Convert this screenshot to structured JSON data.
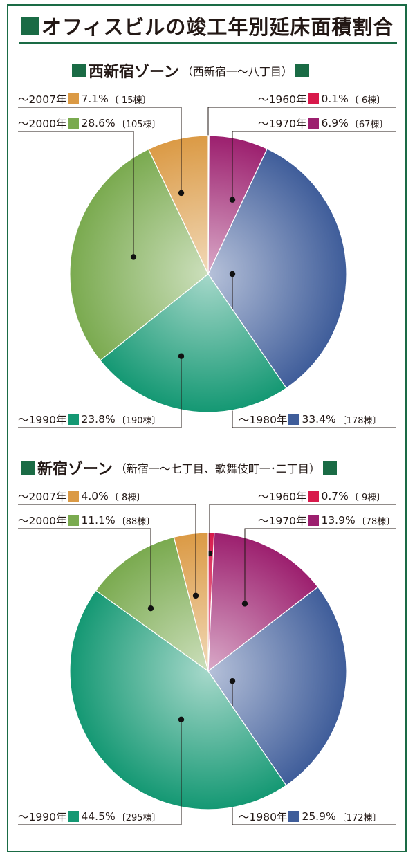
{
  "title": "オフィスビルの竣工年別延床面積割合",
  "accent_color": "#1a6b45",
  "chart_data": [
    {
      "type": "pie",
      "title": "西新宿ゾーン",
      "subtitle": "（西新宿一～八丁目）",
      "slices": [
        {
          "label": "～1960年",
          "value": 0.1,
          "value_label": "0.1%",
          "count": "〔 6棟〕",
          "color": "#d8194b"
        },
        {
          "label": "～1970年",
          "value": 6.9,
          "value_label": "6.9%",
          "count": "〔67棟〕",
          "color": "#9c1f6e"
        },
        {
          "label": "～1980年",
          "value": 33.4,
          "value_label": "33.4%",
          "count": "〔178棟〕",
          "color": "#3f5d9a"
        },
        {
          "label": "～1990年",
          "value": 23.8,
          "value_label": "23.8%",
          "count": "〔190棟〕",
          "color": "#149873"
        },
        {
          "label": "～2000年",
          "value": 28.6,
          "value_label": "28.6%",
          "count": "〔105棟〕",
          "color": "#7aaa4f"
        },
        {
          "label": "～2007年",
          "value": 7.1,
          "value_label": "7.1%",
          "count": "〔 15棟〕",
          "color": "#db9a45"
        }
      ]
    },
    {
      "type": "pie",
      "title": "新宿ゾーン",
      "subtitle": "（新宿一～七丁目、歌舞伎町一･二丁目）",
      "slices": [
        {
          "label": "～1960年",
          "value": 0.7,
          "value_label": "0.7%",
          "count": "〔 9棟〕",
          "color": "#d8194b"
        },
        {
          "label": "～1970年",
          "value": 13.9,
          "value_label": "13.9%",
          "count": "〔78棟〕",
          "color": "#9c1f6e"
        },
        {
          "label": "～1980年",
          "value": 25.9,
          "value_label": "25.9%",
          "count": "〔172棟〕",
          "color": "#3f5d9a"
        },
        {
          "label": "～1990年",
          "value": 44.5,
          "value_label": "44.5%",
          "count": "〔295棟〕",
          "color": "#149873"
        },
        {
          "label": "～2000年",
          "value": 11.1,
          "value_label": "11.1%",
          "count": "〔88棟〕",
          "color": "#7aaa4f"
        },
        {
          "label": "～2007年",
          "value": 4.0,
          "value_label": "4.0%",
          "count": "〔 8棟〕",
          "color": "#db9a45"
        }
      ]
    }
  ]
}
